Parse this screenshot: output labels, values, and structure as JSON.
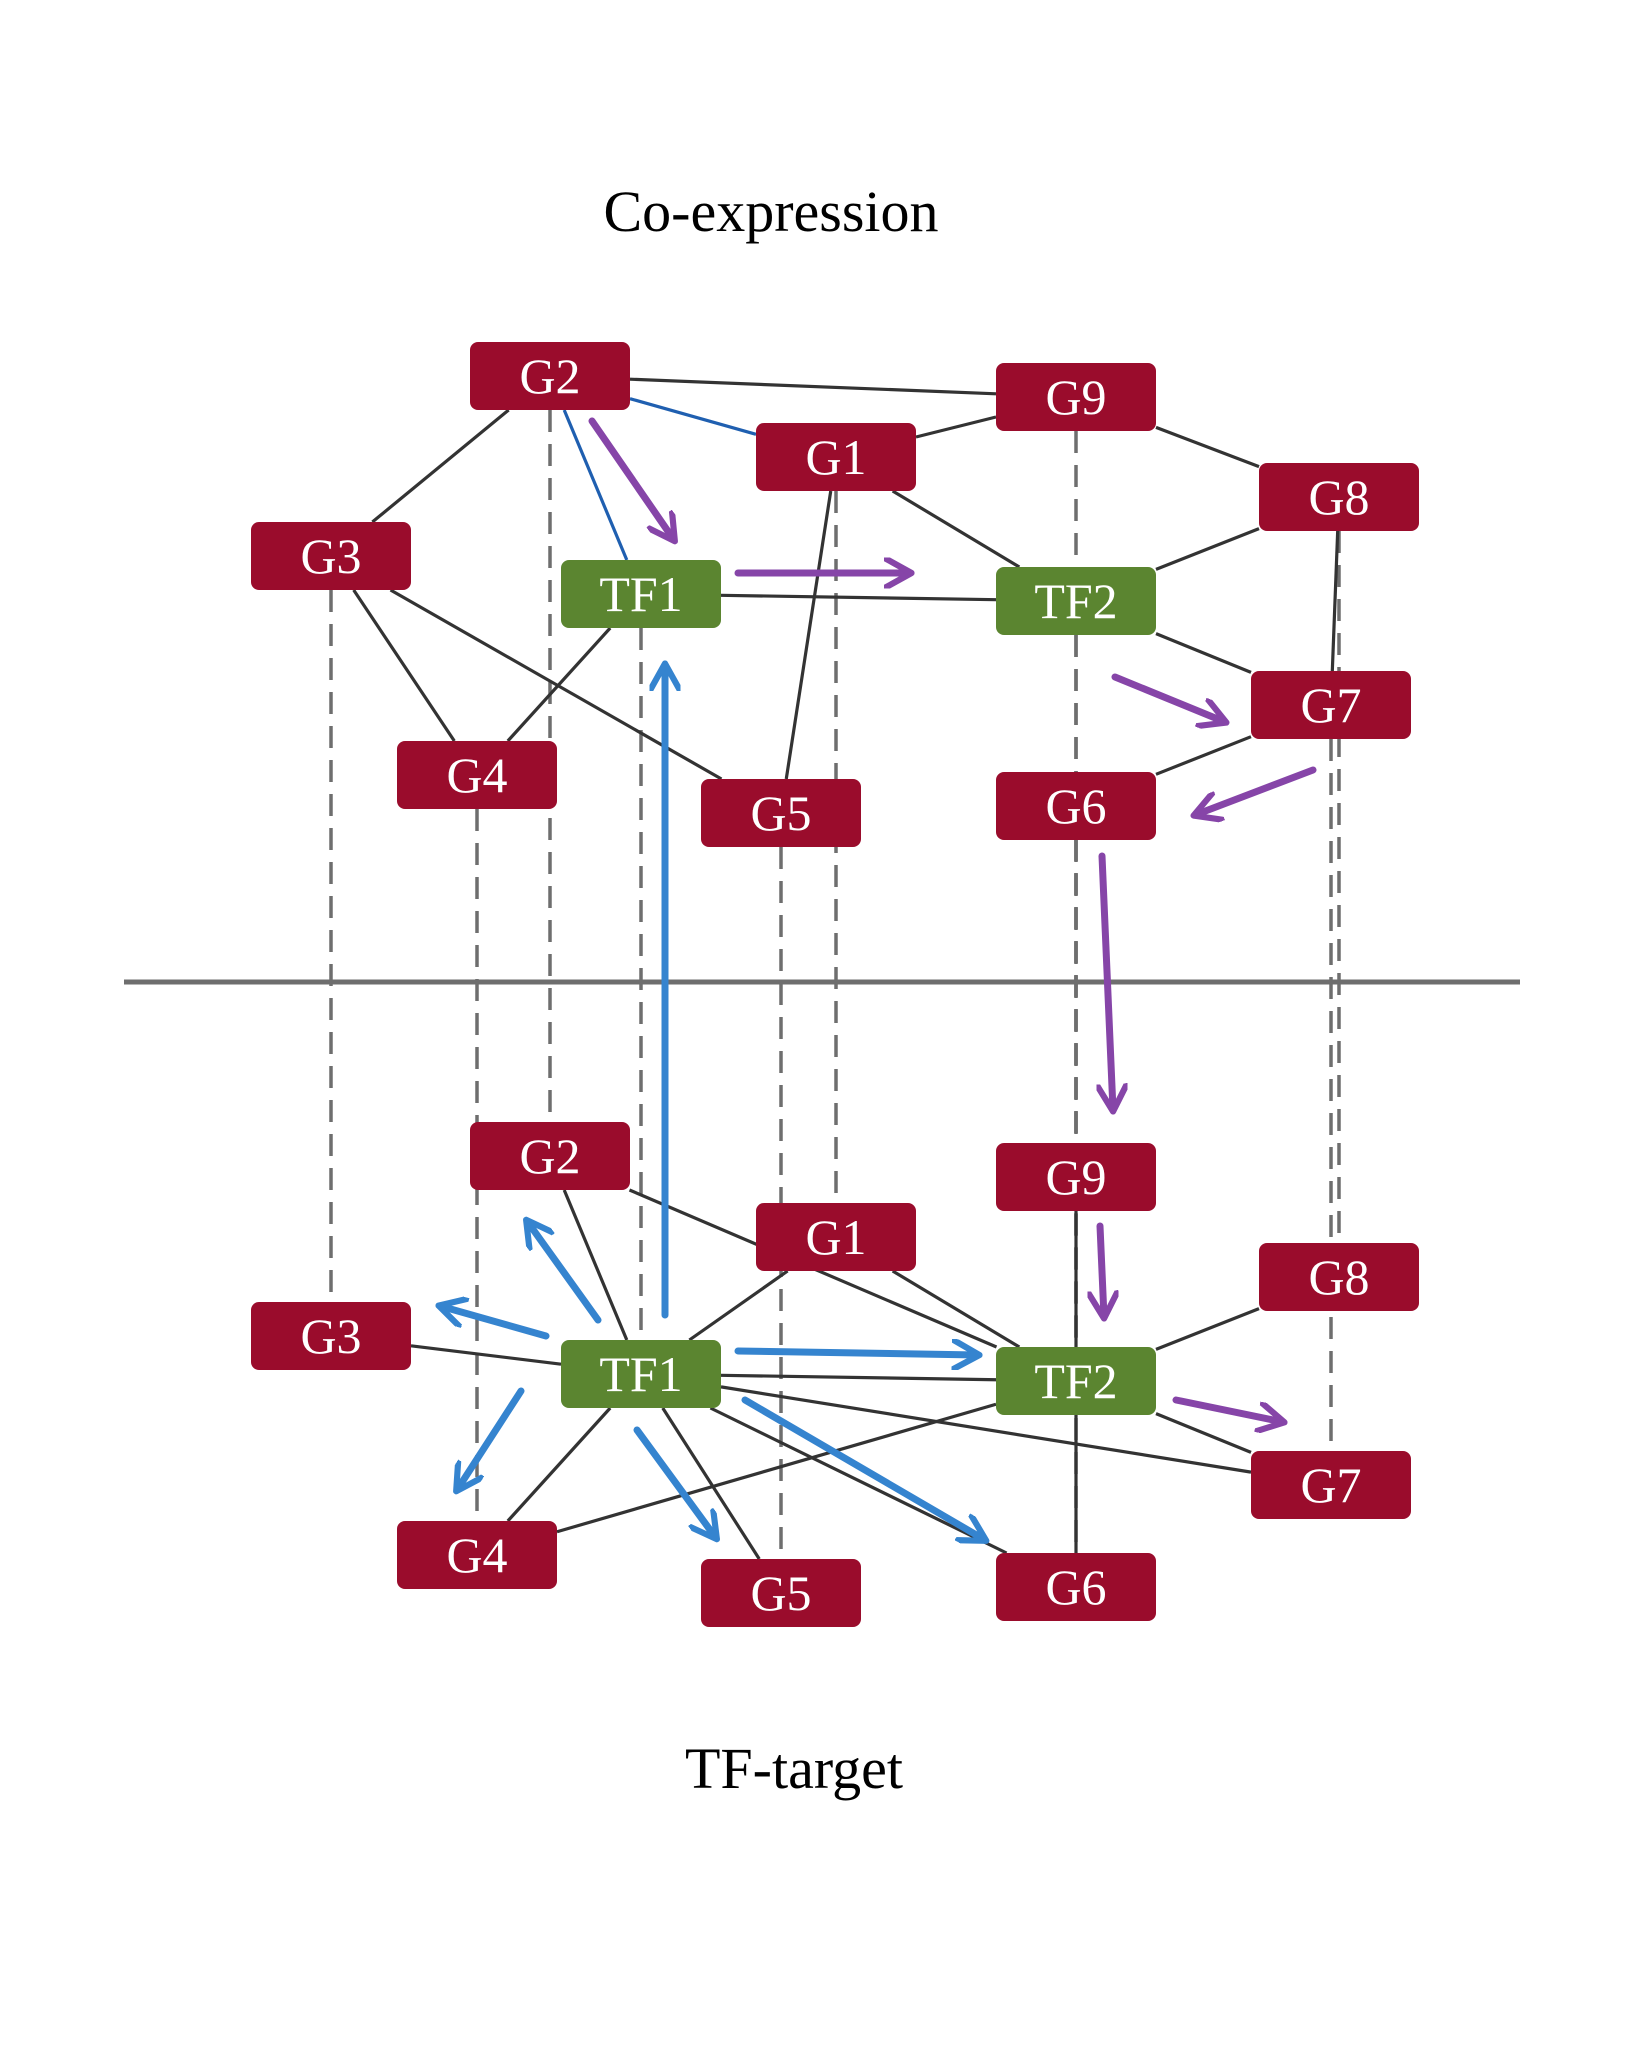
{
  "titles": {
    "top": "Co-expression",
    "bottom": "TF-target"
  },
  "colors": {
    "gene": "#9a0c2c",
    "tf": "#5b8530",
    "edge": "#333333",
    "edge_blue": "#1f5fb0",
    "dashed": "#6e6e6e",
    "divider": "#6e6e6e",
    "arrow_purple": "#8645a8",
    "arrow_blue": "#3584cf",
    "label": "#ffffff"
  },
  "layers": [
    {
      "id": "top",
      "nodes": [
        {
          "id": "G2",
          "label": "G2",
          "kind": "gene"
        },
        {
          "id": "G9",
          "label": "G9",
          "kind": "gene"
        },
        {
          "id": "G1",
          "label": "G1",
          "kind": "gene"
        },
        {
          "id": "G8",
          "label": "G8",
          "kind": "gene"
        },
        {
          "id": "G3",
          "label": "G3",
          "kind": "gene"
        },
        {
          "id": "TF1",
          "label": "TF1",
          "kind": "tf"
        },
        {
          "id": "TF2",
          "label": "TF2",
          "kind": "tf"
        },
        {
          "id": "G7",
          "label": "G7",
          "kind": "gene"
        },
        {
          "id": "G4",
          "label": "G4",
          "kind": "gene"
        },
        {
          "id": "G5",
          "label": "G5",
          "kind": "gene"
        },
        {
          "id": "G6",
          "label": "G6",
          "kind": "gene"
        }
      ],
      "edges": [
        {
          "from": "G2",
          "to": "G3"
        },
        {
          "from": "G2",
          "to": "G9"
        },
        {
          "from": "G2",
          "to": "G1",
          "style": "blue"
        },
        {
          "from": "G2",
          "to": "TF1",
          "style": "blue"
        },
        {
          "from": "G1",
          "to": "G9"
        },
        {
          "from": "G1",
          "to": "TF2"
        },
        {
          "from": "G1",
          "to": "G5"
        },
        {
          "from": "G9",
          "to": "G8"
        },
        {
          "from": "G8",
          "to": "TF2"
        },
        {
          "from": "G8",
          "to": "G7"
        },
        {
          "from": "TF1",
          "to": "TF2"
        },
        {
          "from": "TF1",
          "to": "G4"
        },
        {
          "from": "G3",
          "to": "G4"
        },
        {
          "from": "G3",
          "to": "G5"
        },
        {
          "from": "TF2",
          "to": "G7"
        },
        {
          "from": "G7",
          "to": "G6"
        }
      ]
    },
    {
      "id": "bottom",
      "nodes": [
        {
          "id": "G2",
          "label": "G2",
          "kind": "gene"
        },
        {
          "id": "G9",
          "label": "G9",
          "kind": "gene"
        },
        {
          "id": "G1",
          "label": "G1",
          "kind": "gene"
        },
        {
          "id": "G8",
          "label": "G8",
          "kind": "gene"
        },
        {
          "id": "G3",
          "label": "G3",
          "kind": "gene"
        },
        {
          "id": "TF1",
          "label": "TF1",
          "kind": "tf"
        },
        {
          "id": "TF2",
          "label": "TF2",
          "kind": "tf"
        },
        {
          "id": "G7",
          "label": "G7",
          "kind": "gene"
        },
        {
          "id": "G4",
          "label": "G4",
          "kind": "gene"
        },
        {
          "id": "G5",
          "label": "G5",
          "kind": "gene"
        },
        {
          "id": "G6",
          "label": "G6",
          "kind": "gene"
        }
      ],
      "edges": [
        {
          "from": "G2",
          "to": "TF1"
        },
        {
          "from": "G2",
          "to": "TF2"
        },
        {
          "from": "G1",
          "to": "TF1"
        },
        {
          "from": "G1",
          "to": "TF2"
        },
        {
          "from": "G3",
          "to": "TF1"
        },
        {
          "from": "TF1",
          "to": "G4"
        },
        {
          "from": "TF1",
          "to": "G5"
        },
        {
          "from": "TF1",
          "to": "G6"
        },
        {
          "from": "TF1",
          "to": "G7"
        },
        {
          "from": "TF1",
          "to": "TF2"
        },
        {
          "from": "G9",
          "to": "TF2"
        },
        {
          "from": "G8",
          "to": "TF2"
        },
        {
          "from": "TF2",
          "to": "G7"
        },
        {
          "from": "TF2",
          "to": "G6"
        },
        {
          "from": "TF2",
          "to": "G4"
        }
      ]
    }
  ],
  "interlayer_links": [
    "G3",
    "G2",
    "TF1",
    "G4",
    "G5",
    "G1",
    "TF2",
    "G9",
    "G6",
    "G8",
    "G7"
  ],
  "arrows": [
    {
      "from": "top.G2",
      "to": "top.TF1",
      "color": "purple"
    },
    {
      "from": "top.TF1",
      "to": "top.TF2",
      "color": "purple"
    },
    {
      "from": "top.TF2",
      "to": "top.G7",
      "color": "purple"
    },
    {
      "from": "top.G7",
      "to": "top.G6",
      "color": "purple"
    },
    {
      "from": "top.G6",
      "to": "bottom.G9",
      "color": "purple"
    },
    {
      "from": "bottom.G9",
      "to": "bottom.TF2",
      "color": "purple"
    },
    {
      "from": "bottom.TF2",
      "to": "bottom.G7",
      "color": "purple"
    },
    {
      "from": "bottom.TF1",
      "to": "top.TF1",
      "color": "blue"
    },
    {
      "from": "bottom.TF1",
      "to": "bottom.G2",
      "color": "blue"
    },
    {
      "from": "bottom.TF1",
      "to": "bottom.G3",
      "color": "blue"
    },
    {
      "from": "bottom.TF1",
      "to": "bottom.G4",
      "color": "blue"
    },
    {
      "from": "bottom.TF1",
      "to": "bottom.G5",
      "color": "blue"
    },
    {
      "from": "bottom.TF1",
      "to": "bottom.G6",
      "color": "blue"
    },
    {
      "from": "bottom.TF1",
      "to": "bottom.TF2",
      "color": "blue"
    }
  ]
}
